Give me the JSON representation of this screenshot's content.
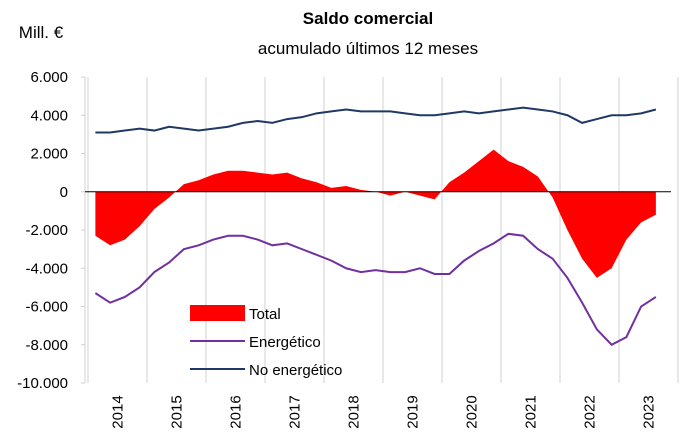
{
  "chart_data": {
    "type": "area-line",
    "title": "Saldo comercial",
    "subtitle": "acumulado últimos 12 meses",
    "y_label": "Mill. €",
    "categories": [
      "2014",
      null,
      null,
      null,
      "2015",
      null,
      null,
      null,
      "2016",
      null,
      null,
      null,
      "2017",
      null,
      null,
      null,
      "2018",
      null,
      null,
      null,
      "2019",
      null,
      null,
      null,
      "2020",
      null,
      null,
      null,
      "2021",
      null,
      null,
      null,
      "2022",
      null,
      null,
      null,
      "2023",
      null,
      null
    ],
    "series": [
      {
        "name": "Total",
        "color": "#ff0000",
        "kind": "area",
        "values": [
          -2300,
          -2800,
          -2500,
          -1800,
          -900,
          -300,
          400,
          600,
          900,
          1100,
          1100,
          1000,
          900,
          1000,
          700,
          500,
          200,
          300,
          100,
          0,
          -200,
          0,
          -200,
          -400,
          500,
          1000,
          1600,
          2200,
          1600,
          1300,
          800,
          -300,
          -2000,
          -3500,
          -4500,
          -4000,
          -2500,
          -1600,
          -1200
        ]
      },
      {
        "name": "Energético",
        "color": "#7030a0",
        "kind": "line",
        "values": [
          -5300,
          -5800,
          -5500,
          -5000,
          -4200,
          -3700,
          -3000,
          -2800,
          -2500,
          -2300,
          -2300,
          -2500,
          -2800,
          -2700,
          -3000,
          -3300,
          -3600,
          -4000,
          -4200,
          -4100,
          -4200,
          -4200,
          -4000,
          -4300,
          -4300,
          -3600,
          -3100,
          -2700,
          -2200,
          -2300,
          -3000,
          -3500,
          -4500,
          -5800,
          -7200,
          -8000,
          -7600,
          -6000,
          -5500
        ]
      },
      {
        "name": "No energético",
        "color": "#1f3864",
        "kind": "line",
        "values": [
          3100,
          3100,
          3200,
          3300,
          3200,
          3400,
          3300,
          3200,
          3300,
          3400,
          3600,
          3700,
          3600,
          3800,
          3900,
          4100,
          4200,
          4300,
          4200,
          4200,
          4200,
          4100,
          4000,
          4000,
          4100,
          4200,
          4100,
          4200,
          4300,
          4400,
          4300,
          4200,
          4000,
          3600,
          3800,
          4000,
          4000,
          4100,
          4300
        ]
      }
    ],
    "ylim": [
      -10000,
      6000
    ],
    "yticks": [
      {
        "value": -10000,
        "label": "-10.000"
      },
      {
        "value": -8000,
        "label": "-8.000"
      },
      {
        "value": -6000,
        "label": "-6.000"
      },
      {
        "value": -4000,
        "label": "-4.000"
      },
      {
        "value": -2000,
        "label": "-2.000"
      },
      0,
      {
        "value": 2000,
        "label": "2.000"
      },
      {
        "value": 4000,
        "label": "4.000"
      },
      {
        "value": 6000,
        "label": "6.000"
      }
    ],
    "legend": "lower-left"
  }
}
